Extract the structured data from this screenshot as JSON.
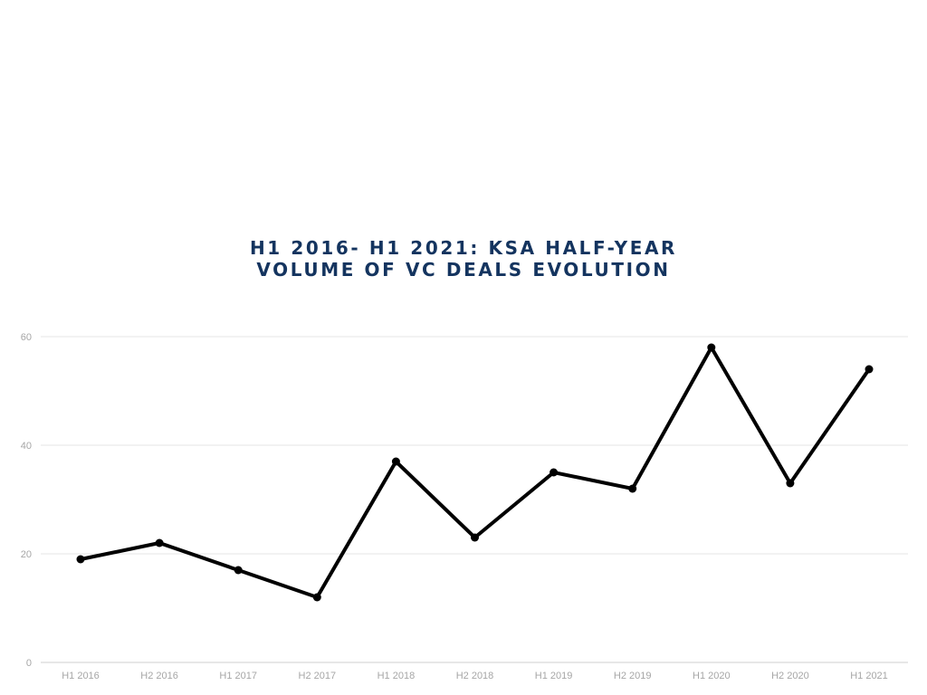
{
  "chart_data": {
    "type": "line",
    "title_lines": [
      "H1 2016- H1 2021: KSA HALF-YEAR",
      "VOLUME OF VC DEALS EVOLUTION"
    ],
    "categories": [
      "H1 2016",
      "H2 2016",
      "H1 2017",
      "H2 2017",
      "H1 2018",
      "H2 2018",
      "H1 2019",
      "H2 2019",
      "H1 2020",
      "H2 2020",
      "H1 2021"
    ],
    "series": [
      {
        "values": [
          19,
          22,
          17,
          12,
          37,
          23,
          35,
          32,
          58,
          33,
          54
        ]
      }
    ],
    "yticks": [
      "0",
      "20",
      "40",
      "60"
    ],
    "ylim": [
      0,
      60
    ],
    "grid": true,
    "legend": "none",
    "colors": {
      "line": "#000000",
      "grid": "#e6e6e6",
      "axis": "#cfcfcf",
      "title": "#14345f",
      "tick_label": "#a6a6a6"
    }
  }
}
